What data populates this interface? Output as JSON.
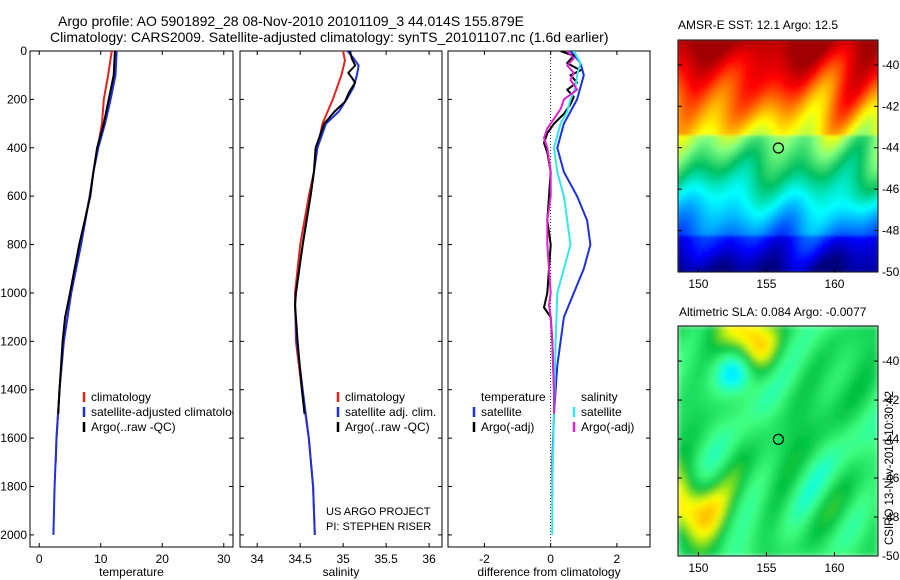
{
  "figure": {
    "title_line1": "Argo profile: AO 5901892_28 08-Nov-2010 20101109_3 44.014S 155.879E",
    "title_line2": "Climatology: CARS2009. Satellite-adjusted climatology: synTS_20101107.nc (1.6d earlier)",
    "project_line1": "US ARGO PROJECT",
    "project_line2": "PI: STEPHEN RISER",
    "stamp": "CSIRO 13-Nov-2010 10:30:42"
  },
  "colors": {
    "red": "#e8211c",
    "blue": "#1c31e0",
    "black": "#000000",
    "cyan": "#34e8e8",
    "magenta": "#e021d0"
  },
  "chart_data": [
    {
      "type": "line",
      "name": "temperature-profile",
      "xlabel": "temperature",
      "xlim": [
        -1.5,
        31.5
      ],
      "ylim": [
        2050,
        0
      ],
      "y_reversed": true,
      "xticks": [
        0,
        10,
        20,
        30
      ],
      "yticks": [
        0,
        200,
        400,
        600,
        800,
        1000,
        1200,
        1400,
        1600,
        1800,
        2000
      ],
      "legend": [
        "climatology",
        "satellite-adjusted climatology",
        "Argo(..raw -QC)"
      ],
      "series": [
        {
          "name": "climatology",
          "color": "red",
          "depth": [
            0,
            100,
            200,
            300,
            400,
            500,
            600,
            800,
            1000,
            1200,
            1400,
            1600,
            1700
          ],
          "values": [
            11.8,
            11.2,
            10.5,
            10.2,
            9.5,
            8.8,
            8.2,
            6.7,
            5.2,
            4.0,
            3.3,
            2.8,
            2.7
          ]
        },
        {
          "name": "satellite-adjusted climatology",
          "color": "blue",
          "depth": [
            0,
            100,
            200,
            300,
            400,
            500,
            600,
            800,
            1000,
            1200,
            1400,
            1600,
            1800,
            2000
          ],
          "values": [
            12.6,
            12.4,
            11.6,
            10.7,
            9.6,
            8.8,
            8.2,
            6.8,
            5.2,
            4.0,
            3.3,
            2.8,
            2.5,
            2.3
          ]
        },
        {
          "name": "Argo(..raw -QC)",
          "color": "black",
          "depth": [
            0,
            100,
            200,
            300,
            400,
            500,
            600,
            800,
            1000,
            1100,
            1200,
            1400,
            1500
          ],
          "values": [
            12.3,
            12.1,
            11.3,
            10.5,
            9.4,
            8.8,
            8.3,
            6.5,
            5.0,
            4.2,
            3.8,
            3.3,
            3.1
          ]
        }
      ]
    },
    {
      "type": "line",
      "name": "salinity-profile",
      "xlabel": "salinity",
      "xlim": [
        33.8,
        36.15
      ],
      "ylim": [
        2050,
        0
      ],
      "y_reversed": true,
      "xticks": [
        34,
        34.5,
        35,
        35.5,
        36
      ],
      "yticks": [
        0,
        200,
        400,
        600,
        800,
        1000,
        1200,
        1400,
        1600,
        1800,
        2000
      ],
      "legend": [
        "climatology",
        "satellite adj. clim.",
        "Argo(..raw -QC)"
      ],
      "series": [
        {
          "name": "climatology",
          "color": "red",
          "depth": [
            0,
            40,
            100,
            200,
            300,
            400,
            500,
            600,
            800,
            1000,
            1200,
            1400,
            1600,
            1800,
            2000
          ],
          "values": [
            35.0,
            35.02,
            34.98,
            34.88,
            34.76,
            34.7,
            34.66,
            34.6,
            34.5,
            34.44,
            34.45,
            34.52,
            34.6,
            34.65,
            34.67
          ]
        },
        {
          "name": "satellite adj. clim.",
          "color": "blue",
          "depth": [
            0,
            30,
            60,
            100,
            150,
            200,
            250,
            300,
            400,
            500,
            600,
            800,
            1000,
            1050,
            1200,
            1400,
            1600,
            1800,
            2000
          ],
          "values": [
            35.05,
            35.12,
            35.18,
            35.16,
            35.12,
            35.04,
            34.95,
            34.8,
            34.7,
            34.66,
            34.62,
            34.53,
            34.45,
            34.44,
            34.46,
            34.53,
            34.6,
            34.65,
            34.67
          ]
        },
        {
          "name": "Argo(..raw -QC)",
          "color": "black",
          "depth": [
            0,
            30,
            60,
            90,
            130,
            170,
            210,
            250,
            300,
            400,
            500,
            600,
            800,
            1000,
            1050,
            1100,
            1200,
            1400,
            1500
          ],
          "values": [
            35.08,
            35.1,
            35.14,
            35.06,
            35.14,
            35.07,
            35.02,
            34.9,
            34.78,
            34.68,
            34.66,
            34.62,
            34.53,
            34.45,
            34.44,
            34.45,
            34.47,
            34.52,
            34.55
          ]
        }
      ]
    },
    {
      "type": "line",
      "name": "difference-profile",
      "xlabel": "difference from climatology",
      "xlim": [
        -3.1,
        3.0
      ],
      "ylim": [
        2050,
        0
      ],
      "y_reversed": true,
      "xticks": [
        -2,
        0,
        2
      ],
      "yticks": [
        0,
        200,
        400,
        600,
        800,
        1000,
        1200,
        1400,
        1600,
        1800,
        2000
      ],
      "legend_left": [
        "temperature",
        "satellite",
        "Argo(-adj)"
      ],
      "legend_right": [
        "salinity",
        "satellite",
        "Argo(-adj)"
      ],
      "series": [
        {
          "name": "temperature satellite",
          "color": "blue",
          "depth": [
            0,
            50,
            100,
            200,
            300,
            400,
            500,
            600,
            700,
            800,
            900,
            1000,
            1100,
            1300,
            1500,
            1700,
            1850
          ],
          "values": [
            0.6,
            0.9,
            1.0,
            0.8,
            0.4,
            0.2,
            0.4,
            0.8,
            1.1,
            1.2,
            1.0,
            0.7,
            0.4,
            0.2,
            0.1,
            0.05,
            0.05
          ]
        },
        {
          "name": "temperature Argo(-adj)",
          "color": "black",
          "depth": [
            0,
            20,
            50,
            80,
            100,
            130,
            160,
            190,
            220,
            260,
            300,
            340,
            380,
            420,
            500,
            600,
            700,
            800,
            900,
            1000,
            1060,
            1100,
            1200,
            1400,
            1500
          ],
          "values": [
            0.3,
            0.7,
            0.5,
            0.9,
            0.6,
            0.8,
            0.5,
            0.7,
            0.6,
            0.4,
            0.1,
            -0.1,
            -0.2,
            -0.1,
            0.0,
            -0.05,
            -0.1,
            0.0,
            -0.05,
            -0.1,
            -0.2,
            0.0,
            0.05,
            0.1,
            0.1
          ]
        },
        {
          "name": "salinity satellite",
          "color": "cyan",
          "depth": [
            0,
            50,
            100,
            150,
            200,
            250,
            300,
            350,
            400,
            500,
            600,
            700,
            800,
            900,
            1000,
            1200,
            1500,
            1800,
            2000
          ],
          "values": [
            0.7,
            0.9,
            0.8,
            0.75,
            0.6,
            0.5,
            0.3,
            0.2,
            0.1,
            0.2,
            0.4,
            0.5,
            0.6,
            0.4,
            0.2,
            0.15,
            0.1,
            0.05,
            0.05
          ]
        },
        {
          "name": "salinity Argo(-adj)",
          "color": "magenta",
          "depth": [
            0,
            30,
            60,
            90,
            120,
            160,
            200,
            240,
            280,
            320,
            360,
            400,
            500,
            600,
            700,
            800,
            900,
            1000,
            1050,
            1100,
            1200,
            1400,
            1500
          ],
          "values": [
            0.5,
            0.7,
            0.5,
            0.7,
            0.6,
            0.8,
            0.4,
            0.3,
            0.1,
            -0.1,
            -0.2,
            -0.1,
            0.0,
            0.0,
            -0.1,
            -0.1,
            -0.05,
            0.0,
            -0.05,
            0.0,
            0.05,
            0.1,
            0.1
          ]
        }
      ]
    },
    {
      "type": "heatmap",
      "name": "sst-map",
      "title": "AMSR-E SST: 12.1 Argo: 12.5",
      "xlim": [
        148.5,
        163.2
      ],
      "ylim": [
        -50,
        -38.8
      ],
      "xticks": [
        150,
        155,
        160
      ],
      "yticks": [
        -40,
        -42,
        -44,
        -46,
        -48,
        -50
      ],
      "marker": {
        "lon": 155.879,
        "lat": -44.014
      },
      "colorscale": [
        "#00007f",
        "#0000ff",
        "#0080ff",
        "#00ffff",
        "#00c060",
        "#80ff80",
        "#ffff00",
        "#ff8000",
        "#ff0000",
        "#a00000"
      ]
    },
    {
      "type": "heatmap",
      "name": "sla-map",
      "title": "Altimetric SLA: 0.084 Argo: -0.0077",
      "xlim": [
        148.5,
        163.2
      ],
      "ylim": [
        -50,
        -38.2
      ],
      "xticks": [
        150,
        155,
        160
      ],
      "yticks": [
        -40,
        -42,
        -44,
        -46,
        -48,
        -50
      ],
      "marker": {
        "lon": 155.879,
        "lat": -44.014
      },
      "colorscale": [
        "#0000ff",
        "#0080ff",
        "#00ffff",
        "#40ff80",
        "#00c040",
        "#ffff00",
        "#ff8000",
        "#ff0000"
      ]
    }
  ]
}
